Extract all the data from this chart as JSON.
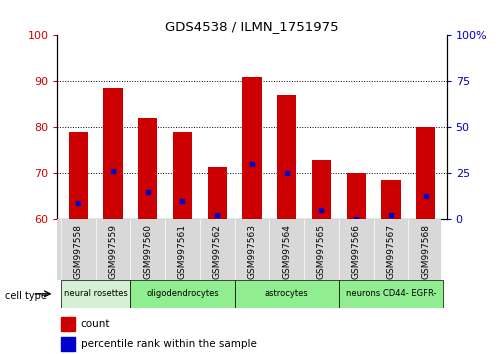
{
  "title": "GDS4538 / ILMN_1751975",
  "samples": [
    "GSM997558",
    "GSM997559",
    "GSM997560",
    "GSM997561",
    "GSM997562",
    "GSM997563",
    "GSM997564",
    "GSM997565",
    "GSM997566",
    "GSM997567",
    "GSM997568"
  ],
  "count_values": [
    79,
    88.5,
    82,
    79,
    71.5,
    91,
    87,
    73,
    70,
    68.5,
    80
  ],
  "percentile_values": [
    63.5,
    70.5,
    66,
    64,
    61,
    72,
    70,
    62,
    60,
    61,
    65
  ],
  "ylim_left": [
    60,
    100
  ],
  "ylim_right": [
    0,
    100
  ],
  "yticks_left": [
    60,
    70,
    80,
    90,
    100
  ],
  "yticks_right": [
    0,
    25,
    50,
    75,
    100
  ],
  "ytick_right_labels": [
    "0",
    "25",
    "50",
    "75",
    "100%"
  ],
  "bar_bottom": 60,
  "cell_type_groups": [
    {
      "label": "neural rosettes",
      "start": 0,
      "end": 2,
      "color": "#d5f0d5"
    },
    {
      "label": "oligodendrocytes",
      "start": 2,
      "end": 5,
      "color": "#90ee90"
    },
    {
      "label": "astrocytes",
      "start": 5,
      "end": 8,
      "color": "#90ee90"
    },
    {
      "label": "neurons CD44- EGFR-",
      "start": 8,
      "end": 11,
      "color": "#90ee90"
    }
  ],
  "bar_color": "#cc0000",
  "percentile_color": "#0000cc",
  "bar_width": 0.55,
  "tick_label_color_left": "#cc0000",
  "tick_label_color_right": "#0000cc",
  "cell_type_row_color_light": "#d5f0d5",
  "cell_type_row_color_green": "#90ee90",
  "legend_bar_color": "#cc0000",
  "legend_pct_color": "#0000cc"
}
